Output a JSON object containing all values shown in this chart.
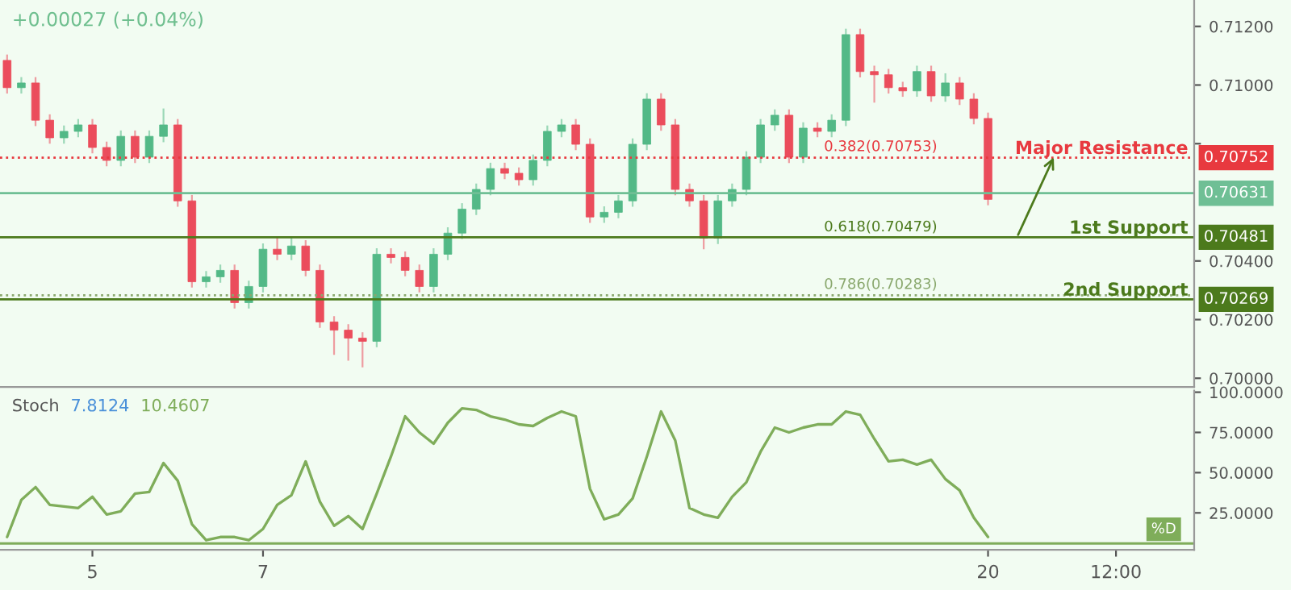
{
  "chart_data": [
    {
      "type": "candlestick",
      "tick_labels": "y",
      "categories": [
        null,
        null,
        null,
        null,
        null,
        null,
        null,
        null,
        null,
        null,
        null,
        null,
        null,
        null,
        null,
        null,
        null,
        null,
        null,
        null,
        null,
        null,
        null,
        null,
        null,
        null,
        null,
        null,
        null,
        null,
        null,
        null,
        null,
        null,
        null,
        null,
        null,
        null,
        null,
        null,
        null,
        null,
        null,
        null,
        null,
        null,
        null,
        null,
        null,
        null,
        null,
        null,
        null,
        null,
        null,
        null,
        null,
        null,
        null,
        null,
        null,
        null,
        null,
        null,
        null,
        null,
        null,
        null,
        null,
        null,
        null,
        null,
        null,
        null,
        null,
        null,
        null,
        null,
        null,
        null,
        null,
        null,
        null,
        null
      ],
      "ohlc": [
        [
          0.71084,
          0.71104,
          0.70971,
          0.70991
        ],
        [
          0.70991,
          0.71027,
          0.70971,
          0.71007
        ],
        [
          0.71007,
          0.71027,
          0.7086,
          0.7088
        ],
        [
          0.7088,
          0.709,
          0.708,
          0.7082
        ],
        [
          0.7082,
          0.70862,
          0.708,
          0.70842
        ],
        [
          0.70842,
          0.70884,
          0.70822,
          0.70864
        ],
        [
          0.70864,
          0.70884,
          0.70767,
          0.70787
        ],
        [
          0.70787,
          0.70807,
          0.70723,
          0.70743
        ],
        [
          0.70743,
          0.70845,
          0.70723,
          0.70825
        ],
        [
          0.70825,
          0.70845,
          0.70734,
          0.70754
        ],
        [
          0.70754,
          0.70845,
          0.70734,
          0.70825
        ],
        [
          0.70825,
          0.7092,
          0.70805,
          0.70864
        ],
        [
          0.70864,
          0.70884,
          0.70585,
          0.70605
        ],
        [
          0.70605,
          0.70625,
          0.70309,
          0.70329
        ],
        [
          0.70329,
          0.70366,
          0.70309,
          0.70346
        ],
        [
          0.70346,
          0.70388,
          0.70326,
          0.70368
        ],
        [
          0.70368,
          0.70388,
          0.70238,
          0.70258
        ],
        [
          0.70258,
          0.70333,
          0.70238,
          0.70313
        ],
        [
          0.70313,
          0.7046,
          0.70293,
          0.7044
        ],
        [
          0.7044,
          0.7048,
          0.70403,
          0.70423
        ],
        [
          0.70423,
          0.7048,
          0.70403,
          0.70451
        ],
        [
          0.70451,
          0.70471,
          0.70348,
          0.70368
        ],
        [
          0.70368,
          0.70388,
          0.70172,
          0.70192
        ],
        [
          0.70192,
          0.70212,
          0.7008,
          0.70164
        ],
        [
          0.70164,
          0.70184,
          0.7006,
          0.70137
        ],
        [
          0.70137,
          0.70157,
          0.70037,
          0.70126
        ],
        [
          0.70126,
          0.70443,
          0.70106,
          0.70423
        ],
        [
          0.70423,
          0.70443,
          0.70392,
          0.70412
        ],
        [
          0.70412,
          0.70432,
          0.70348,
          0.70368
        ],
        [
          0.70368,
          0.70388,
          0.70293,
          0.70313
        ],
        [
          0.70313,
          0.70443,
          0.70293,
          0.70423
        ],
        [
          0.70423,
          0.70515,
          0.70403,
          0.70495
        ],
        [
          0.70495,
          0.70597,
          0.70475,
          0.70577
        ],
        [
          0.70577,
          0.70664,
          0.70557,
          0.70644
        ],
        [
          0.70644,
          0.70735,
          0.70624,
          0.70715
        ],
        [
          0.70715,
          0.70735,
          0.70679,
          0.70699
        ],
        [
          0.70699,
          0.70719,
          0.70657,
          0.70677
        ],
        [
          0.70677,
          0.70763,
          0.70657,
          0.70743
        ],
        [
          0.70743,
          0.70862,
          0.70723,
          0.70842
        ],
        [
          0.70842,
          0.70884,
          0.70822,
          0.70864
        ],
        [
          0.70864,
          0.70884,
          0.70778,
          0.70798
        ],
        [
          0.70798,
          0.70818,
          0.7053,
          0.7055
        ],
        [
          0.7055,
          0.70586,
          0.7053,
          0.70566
        ],
        [
          0.70566,
          0.70625,
          0.70546,
          0.70605
        ],
        [
          0.70605,
          0.70818,
          0.70585,
          0.70798
        ],
        [
          0.70798,
          0.70972,
          0.70778,
          0.70952
        ],
        [
          0.70952,
          0.70972,
          0.70844,
          0.70864
        ],
        [
          0.70864,
          0.70884,
          0.70624,
          0.70644
        ],
        [
          0.70644,
          0.70664,
          0.70585,
          0.70605
        ],
        [
          0.70605,
          0.70625,
          0.7044,
          0.70478
        ],
        [
          0.70478,
          0.70625,
          0.70458,
          0.70605
        ],
        [
          0.70605,
          0.70664,
          0.70585,
          0.70644
        ],
        [
          0.70644,
          0.70774,
          0.70624,
          0.70754
        ],
        [
          0.70754,
          0.70884,
          0.70734,
          0.70864
        ],
        [
          0.70864,
          0.70917,
          0.70844,
          0.70897
        ],
        [
          0.70897,
          0.70917,
          0.70734,
          0.70754
        ],
        [
          0.70754,
          0.70873,
          0.70734,
          0.70853
        ],
        [
          0.70853,
          0.70873,
          0.70822,
          0.70842
        ],
        [
          0.70842,
          0.709,
          0.70822,
          0.7088
        ],
        [
          0.7088,
          0.71192,
          0.7086,
          0.71172
        ],
        [
          0.71172,
          0.71192,
          0.71026,
          0.71046
        ],
        [
          0.71046,
          0.71066,
          0.7094,
          0.71035
        ],
        [
          0.71035,
          0.71055,
          0.70971,
          0.70991
        ],
        [
          0.70991,
          0.71011,
          0.7096,
          0.7098
        ],
        [
          0.7098,
          0.71066,
          0.7096,
          0.71046
        ],
        [
          0.71046,
          0.71066,
          0.70943,
          0.70963
        ],
        [
          0.70963,
          0.7104,
          0.70943,
          0.71007
        ],
        [
          0.71007,
          0.71027,
          0.70932,
          0.70952
        ],
        [
          0.70952,
          0.70972,
          0.70866,
          0.70886
        ],
        [
          0.70886,
          0.70906,
          0.7059,
          0.7061
        ],
        null,
        null,
        null,
        null,
        null,
        null,
        null,
        null,
        null,
        null,
        null,
        null,
        null,
        null
      ],
      "ylim": [
        0.6997,
        0.7129
      ],
      "yticks": [
        {
          "value": 0.7,
          "label": "0.70000"
        },
        {
          "value": 0.702,
          "label": "0.70200"
        },
        {
          "value": 0.704,
          "label": "0.70400"
        },
        {
          "value": 0.708,
          "label": null
        },
        {
          "value": 0.71,
          "label": "0.71000"
        },
        {
          "value": 0.712,
          "label": "0.71200"
        }
      ],
      "ref_lines": [
        {
          "axis": "y",
          "value": 0.70752,
          "label": "0.70752",
          "color": "#e8393f",
          "line_style": "dotted"
        },
        {
          "axis": "y",
          "value": 0.70631,
          "label": "0.70631",
          "color": "#6fbf95",
          "line_style": "solid"
        },
        {
          "axis": "y",
          "value": 0.70481,
          "label": "0.70481",
          "color": "#4c7a1c",
          "line_style": "solid"
        },
        {
          "axis": "y",
          "value": 0.70283,
          "color": "#8aa86e",
          "line_style": "dotted"
        },
        {
          "axis": "y",
          "value": 0.70269,
          "label": "0.70269",
          "color": "#4c7a1c",
          "line_style": "solid"
        }
      ],
      "annotations": [
        "+0.00027 (+0.04%)",
        {
          "text": "Major Resistance",
          "y": 0.70752
        },
        {
          "text": "1st Support",
          "y": 0.70481
        },
        {
          "text": "2nd Support",
          "y": 0.70269
        },
        {
          "text": "0.382(0.70753)",
          "y": 0.70753
        },
        {
          "text": "0.618(0.70479)",
          "y": 0.70479
        },
        {
          "text": "0.786(0.70283)",
          "y": 0.70283
        }
      ]
    },
    {
      "type": "line",
      "title": "Stoch",
      "categories": [
        null,
        null,
        null,
        null,
        null,
        null,
        "5",
        null,
        null,
        null,
        null,
        null,
        null,
        null,
        null,
        null,
        null,
        null,
        "7",
        null,
        null,
        null,
        null,
        null,
        null,
        null,
        null,
        null,
        null,
        null,
        null,
        null,
        null,
        null,
        null,
        null,
        null,
        null,
        null,
        null,
        null,
        null,
        null,
        null,
        null,
        null,
        null,
        null,
        null,
        null,
        null,
        null,
        null,
        null,
        null,
        null,
        null,
        null,
        null,
        null,
        null,
        null,
        null,
        null,
        null,
        null,
        null,
        null,
        null,
        "20",
        null,
        null,
        null,
        null,
        null,
        null,
        null,
        null,
        "12:00",
        null,
        null,
        null,
        null,
        null
      ],
      "series": [
        {
          "color": "#7fad5a",
          "values": [
            10,
            33,
            41,
            30,
            29,
            28,
            35,
            24,
            26,
            37,
            38,
            56,
            45,
            18,
            8,
            10,
            10,
            8,
            15,
            30,
            36,
            57,
            32,
            17,
            23,
            15,
            37,
            60,
            85,
            75,
            68,
            81,
            90,
            89,
            85,
            83,
            80,
            79,
            84,
            88,
            85,
            40,
            21,
            24,
            34,
            60,
            88,
            70,
            28,
            24,
            22,
            35,
            44,
            63,
            78,
            75,
            78,
            80,
            80,
            88,
            86,
            71,
            57,
            58,
            55,
            58,
            46,
            39,
            22,
            10,
            null,
            null,
            null,
            null,
            null,
            null,
            null,
            null,
            null,
            null,
            null,
            null,
            null,
            null
          ]
        }
      ],
      "ylim": [
        2,
        101
      ],
      "yticks": [
        {
          "value": 25,
          "label": "25.0000"
        },
        {
          "value": 50,
          "label": "50.0000"
        },
        {
          "value": 75,
          "label": "75.0000"
        },
        {
          "value": 100,
          "label": "100.0000"
        }
      ],
      "ref_lines": [
        {
          "axis": "y",
          "value": 6,
          "color": "#7fad5a",
          "line_style": "solid"
        }
      ],
      "annotations": [
        "7.8124",
        "10.4607",
        {
          "text": "%D",
          "y": 10.4607
        }
      ]
    }
  ]
}
